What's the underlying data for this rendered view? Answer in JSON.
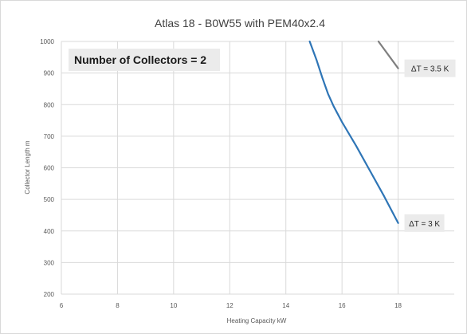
{
  "chart_data": {
    "type": "line",
    "title": "Atlas 18 - B0W55 with PEM40x2.4",
    "xlabel": "Heating Capacity  kW",
    "ylabel": "Collector Length  m",
    "xlim": [
      6,
      20
    ],
    "ylim": [
      200,
      1000
    ],
    "x_ticks": [
      6,
      8,
      10,
      12,
      14,
      16,
      18
    ],
    "y_ticks": [
      200,
      300,
      400,
      500,
      600,
      700,
      800,
      900,
      1000
    ],
    "grid": true,
    "annotation_box": "Number of Collectors = 2",
    "series": [
      {
        "name": "ΔT = 3.5 K",
        "color": "#7f7f7f",
        "x": [
          17.3,
          18.0
        ],
        "y": [
          1000,
          915
        ]
      },
      {
        "name": "ΔT = 3 K",
        "color": "#2e75b6",
        "x": [
          14.85,
          15.1,
          15.3,
          15.5,
          15.7,
          16.0,
          16.5,
          17.0,
          17.5,
          18.0
        ],
        "y": [
          1000,
          940,
          885,
          835,
          795,
          745,
          670,
          590,
          510,
          425
        ]
      }
    ]
  }
}
